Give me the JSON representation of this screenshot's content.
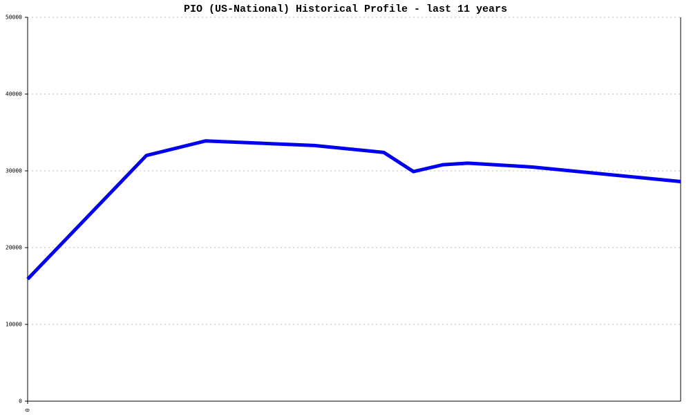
{
  "chart_data": {
    "type": "line",
    "title": "PIO (US-National) Historical Profile - last 11 years",
    "x": [
      0,
      24,
      36,
      58,
      72,
      78,
      84,
      89,
      102,
      132
    ],
    "series": [
      {
        "name": "PIO",
        "color": "#0000ee",
        "values": [
          15900,
          32000,
          33900,
          33300,
          32400,
          29900,
          30800,
          31000,
          30500,
          28600
        ]
      }
    ],
    "xlim": [
      0,
      132
    ],
    "xticks": [
      0
    ],
    "ylim": [
      0,
      50000
    ],
    "yticks": [
      0,
      10000,
      20000,
      30000,
      40000,
      50000
    ],
    "grid": true
  }
}
